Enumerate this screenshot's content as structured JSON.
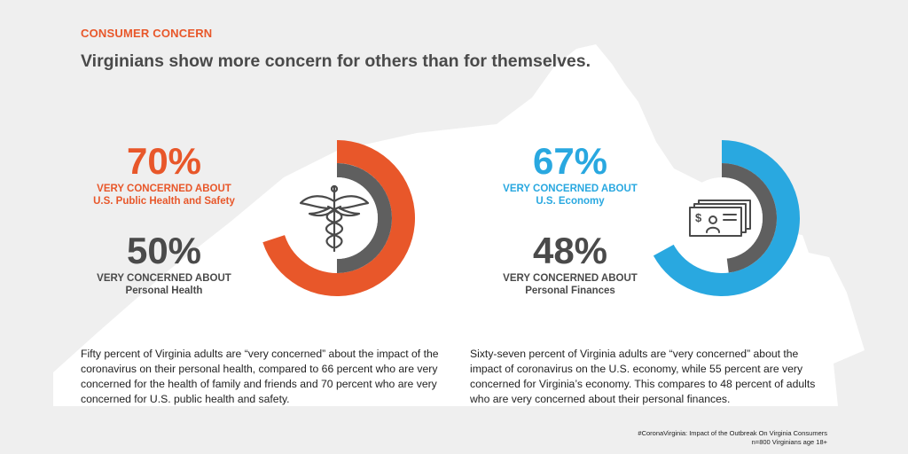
{
  "header": {
    "kicker": "CONSUMER CONCERN",
    "headline": "Virginians show more concern for others than for themselves."
  },
  "colors": {
    "accent_orange": "#e8572a",
    "accent_blue": "#29a8e0",
    "track_gray": "#5f5f5f",
    "text_gray": "#4a4a4a"
  },
  "left_panel": {
    "primary": {
      "value": "70%",
      "line1": "VERY CONCERNED ABOUT",
      "line2": "U.S. Public Health and Safety"
    },
    "secondary": {
      "value": "50%",
      "line1": "VERY CONCERNED ABOUT",
      "line2": "Personal Health"
    },
    "icon": "caduceus-icon",
    "paragraph": "Fifty percent of Virginia adults are “very concerned” about the impact of the coronavirus on their personal health, compared to 66 percent who are very concerned for the health of family and friends and 70 percent who are very concerned for U.S. public health and safety."
  },
  "right_panel": {
    "primary": {
      "value": "67%",
      "line1": "VERY CONCERNED ABOUT",
      "line2": "U.S. Economy"
    },
    "secondary": {
      "value": "48%",
      "line1": "VERY CONCERNED ABOUT",
      "line2": "Personal Finances"
    },
    "icon": "money-bills-icon",
    "paragraph": "Sixty-seven percent of Virginia adults are “very concerned” about the impact of coronavirus on the U.S. economy, while 55 percent are very concerned for Virginia’s economy. This compares to 48 percent of adults who are very concerned about their personal finances."
  },
  "footnote": {
    "line1": "#CoronaVirginia: Impact of the Outbreak On Virginia Consumers",
    "line2": "n=800 Virginians age 18+"
  },
  "chart_data": [
    {
      "type": "donut",
      "series": [
        {
          "name": "U.S. Public Health and Safety",
          "value": 70
        },
        {
          "name": "Personal Health",
          "value": 50
        }
      ]
    },
    {
      "type": "donut",
      "series": [
        {
          "name": "U.S. Economy",
          "value": 67
        },
        {
          "name": "Personal Finances",
          "value": 48
        }
      ]
    }
  ]
}
